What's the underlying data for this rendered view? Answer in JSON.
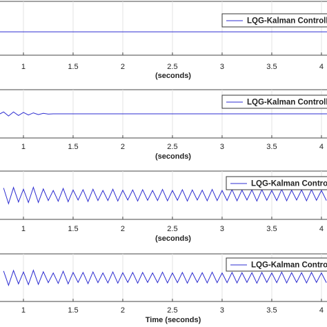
{
  "chart_data": [
    {
      "type": "line",
      "x_label": "(seconds)",
      "xlim": [
        0.764,
        4.056
      ],
      "ylim": [
        -1,
        1.3
      ],
      "xticks": [
        1,
        1.5,
        2,
        2.5,
        3,
        3.5,
        4
      ],
      "grid": true,
      "x": [
        0.764,
        4.056
      ],
      "series": [
        {
          "name": "LQG-Kalman Controller",
          "color": "#2b2bd0",
          "values": [
            0,
            0
          ]
        }
      ]
    },
    {
      "type": "line",
      "x_label": "(seconds)",
      "xlim": [
        0.764,
        4.056
      ],
      "ylim": [
        -1,
        1
      ],
      "xticks": [
        1,
        1.5,
        2,
        2.5,
        3,
        3.5,
        4
      ],
      "grid": true,
      "x": [
        0.764,
        0.8,
        0.85,
        0.9,
        0.95,
        1,
        1.05,
        1.1,
        1.15,
        1.2,
        1.25,
        1.3,
        4.056
      ],
      "series": [
        {
          "name": "LQG-Kalman Controller",
          "color": "#2b2bd0",
          "values": [
            0,
            0.08,
            -0.09,
            0.08,
            -0.07,
            0.06,
            -0.05,
            0.04,
            -0.03,
            0.02,
            -0.01,
            0,
            0
          ]
        }
      ]
    },
    {
      "type": "line",
      "x_label": "(seconds)",
      "xlim": [
        0.764,
        4.056
      ],
      "ylim": [
        -1,
        1
      ],
      "xticks": [
        1,
        1.5,
        2,
        2.5,
        3,
        3.5,
        4
      ],
      "grid": true,
      "x": [
        0.8,
        0.85,
        0.9,
        0.95,
        1,
        1.05,
        1.1,
        1.15,
        1.2,
        1.25,
        1.3,
        1.35,
        1.4,
        1.45,
        1.5,
        1.55,
        1.6,
        1.65,
        1.7,
        1.75,
        1.8,
        1.85,
        1.9,
        1.95,
        2,
        2.05,
        2.1,
        2.15,
        2.2,
        2.25,
        2.3,
        2.35,
        2.4,
        2.45,
        2.5,
        2.55,
        2.6,
        2.65,
        2.7,
        2.75,
        2.8,
        2.85,
        2.9,
        2.95,
        3,
        3.05,
        3.1,
        3.15,
        3.2,
        3.25,
        3.3,
        3.35,
        3.4,
        3.45,
        3.5,
        3.55,
        3.6,
        3.65,
        3.7,
        3.75,
        3.8,
        3.85,
        3.9,
        3.95,
        4,
        4.05
      ],
      "series": [
        {
          "name": "LQG-Kalman Controller",
          "color": "#2b2bd0",
          "values": [
            0.3,
            -0.35,
            0.32,
            -0.28,
            0.25,
            -0.3,
            0.33,
            -0.3,
            0.26,
            -0.22,
            0.2,
            -0.25,
            0.28,
            -0.27,
            0.22,
            -0.2,
            0.23,
            -0.26,
            0.25,
            -0.22,
            0.2,
            -0.22,
            0.25,
            -0.24,
            0.21,
            -0.2,
            0.22,
            -0.24,
            0.23,
            -0.21,
            0.2,
            -0.22,
            0.24,
            -0.23,
            0.2,
            -0.21,
            0.23,
            -0.24,
            0.22,
            -0.2,
            0.21,
            -0.23,
            0.24,
            -0.22,
            0.2,
            -0.22,
            0.23,
            -0.23,
            0.21,
            -0.2,
            0.22,
            -0.24,
            0.23,
            -0.21,
            0.2,
            -0.22,
            0.24,
            -0.23,
            0.21,
            -0.2,
            0.22,
            -0.23,
            0.23,
            -0.21,
            0.2,
            -0.22
          ]
        }
      ]
    },
    {
      "type": "line",
      "x_label": "Time (seconds)",
      "xlim": [
        0.764,
        4.056
      ],
      "ylim": [
        -1,
        1
      ],
      "xticks": [
        1,
        1.5,
        2,
        2.5,
        3,
        3.5,
        4
      ],
      "grid": true,
      "x": [
        0.8,
        0.85,
        0.9,
        0.95,
        1,
        1.05,
        1.1,
        1.15,
        1.2,
        1.25,
        1.3,
        1.35,
        1.4,
        1.45,
        1.5,
        1.55,
        1.6,
        1.65,
        1.7,
        1.75,
        1.8,
        1.85,
        1.9,
        1.95,
        2,
        2.05,
        2.1,
        2.15,
        2.2,
        2.25,
        2.3,
        2.35,
        2.4,
        2.45,
        2.5,
        2.55,
        2.6,
        2.65,
        2.7,
        2.75,
        2.8,
        2.85,
        2.9,
        2.95,
        3,
        3.05,
        3.1,
        3.15,
        3.2,
        3.25,
        3.3,
        3.35,
        3.4,
        3.45,
        3.5,
        3.55,
        3.6,
        3.65,
        3.7,
        3.75,
        3.8,
        3.85,
        3.9,
        3.95,
        4,
        4.05
      ],
      "series": [
        {
          "name": "LQG-Kalman Controller",
          "color": "#2b2bd0",
          "values": [
            0.28,
            -0.32,
            0.3,
            -0.26,
            0.24,
            -0.29,
            0.31,
            -0.28,
            0.25,
            -0.21,
            0.2,
            -0.24,
            0.27,
            -0.26,
            0.22,
            -0.2,
            0.22,
            -0.25,
            0.24,
            -0.21,
            0.2,
            -0.22,
            0.24,
            -0.23,
            0.21,
            -0.2,
            0.22,
            -0.23,
            0.22,
            -0.2,
            0.2,
            -0.21,
            0.23,
            -0.22,
            0.2,
            -0.21,
            0.22,
            -0.23,
            0.21,
            -0.2,
            0.21,
            -0.22,
            0.23,
            -0.21,
            0.2,
            -0.21,
            0.22,
            -0.22,
            0.21,
            -0.2,
            0.21,
            -0.23,
            0.22,
            -0.2,
            0.2,
            -0.21,
            0.23,
            -0.22,
            0.21,
            -0.2,
            0.21,
            -0.22,
            0.22,
            -0.2,
            0.2,
            -0.21
          ]
        }
      ]
    }
  ]
}
